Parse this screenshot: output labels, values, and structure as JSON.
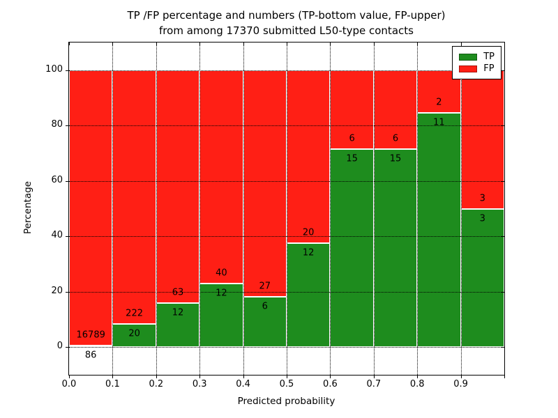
{
  "title": {
    "line1": "TP /FP percentage and numbers (TP-bottom value, FP-upper)",
    "line2": "from among 17370 submitted L50-type contacts"
  },
  "axes": {
    "xlabel": "Predicted probability",
    "ylabel": "Percentage",
    "xtick_labels": [
      "0.0",
      "0.1",
      "0.2",
      "0.3",
      "0.4",
      "0.5",
      "0.6",
      "0.7",
      "0.8",
      "0.9"
    ],
    "ytick_labels": [
      "0",
      "20",
      "40",
      "60",
      "80",
      "100"
    ]
  },
  "legend": {
    "entries": [
      {
        "label": "TP",
        "color": "#1e8c1e"
      },
      {
        "label": "FP",
        "color": "#ff1f15"
      }
    ]
  },
  "colors": {
    "tp_green": "#1e8c1e",
    "fp_red": "#ff1f15",
    "grid": "#000000",
    "background": "#ffffff"
  },
  "chart_data": {
    "type": "bar",
    "variant": "stacked-percentage",
    "title": "TP /FP percentage and numbers (TP-bottom value, FP-upper) from among 17370 submitted L50-type contacts",
    "xlabel": "Predicted probability",
    "ylabel": "Percentage",
    "xlim": [
      0.0,
      1.0
    ],
    "ylim": [
      -10,
      110
    ],
    "yticks": [
      0,
      20,
      40,
      60,
      80,
      100
    ],
    "xticks": [
      0.0,
      0.1,
      0.2,
      0.3,
      0.4,
      0.5,
      0.6,
      0.7,
      0.8,
      0.9
    ],
    "grid": true,
    "legend_position": "upper right",
    "total_contacts": 17370,
    "bin_width": 0.1,
    "series": [
      {
        "name": "TP",
        "color": "#1e8c1e",
        "counts": [
          86,
          20,
          12,
          12,
          6,
          12,
          15,
          15,
          11,
          3
        ]
      },
      {
        "name": "FP",
        "color": "#ff1f15",
        "counts": [
          16789,
          222,
          63,
          40,
          27,
          20,
          6,
          6,
          2,
          3
        ]
      }
    ],
    "bins": [
      {
        "x0": 0.0,
        "x1": 0.1,
        "tp": 86,
        "fp": 16789,
        "tp_percent": 0.51
      },
      {
        "x0": 0.1,
        "x1": 0.2,
        "tp": 20,
        "fp": 222,
        "tp_percent": 8.26
      },
      {
        "x0": 0.2,
        "x1": 0.3,
        "tp": 12,
        "fp": 63,
        "tp_percent": 16.0
      },
      {
        "x0": 0.3,
        "x1": 0.4,
        "tp": 12,
        "fp": 40,
        "tp_percent": 23.08
      },
      {
        "x0": 0.4,
        "x1": 0.5,
        "tp": 6,
        "fp": 27,
        "tp_percent": 18.18
      },
      {
        "x0": 0.5,
        "x1": 0.6,
        "tp": 12,
        "fp": 20,
        "tp_percent": 37.5
      },
      {
        "x0": 0.6,
        "x1": 0.7,
        "tp": 15,
        "fp": 6,
        "tp_percent": 71.43
      },
      {
        "x0": 0.7,
        "x1": 0.8,
        "tp": 15,
        "fp": 6,
        "tp_percent": 71.43
      },
      {
        "x0": 0.8,
        "x1": 0.9,
        "tp": 11,
        "fp": 2,
        "tp_percent": 84.62
      },
      {
        "x0": 0.9,
        "x1": 1.0,
        "tp": 3,
        "fp": 3,
        "tp_percent": 50.0
      }
    ]
  }
}
